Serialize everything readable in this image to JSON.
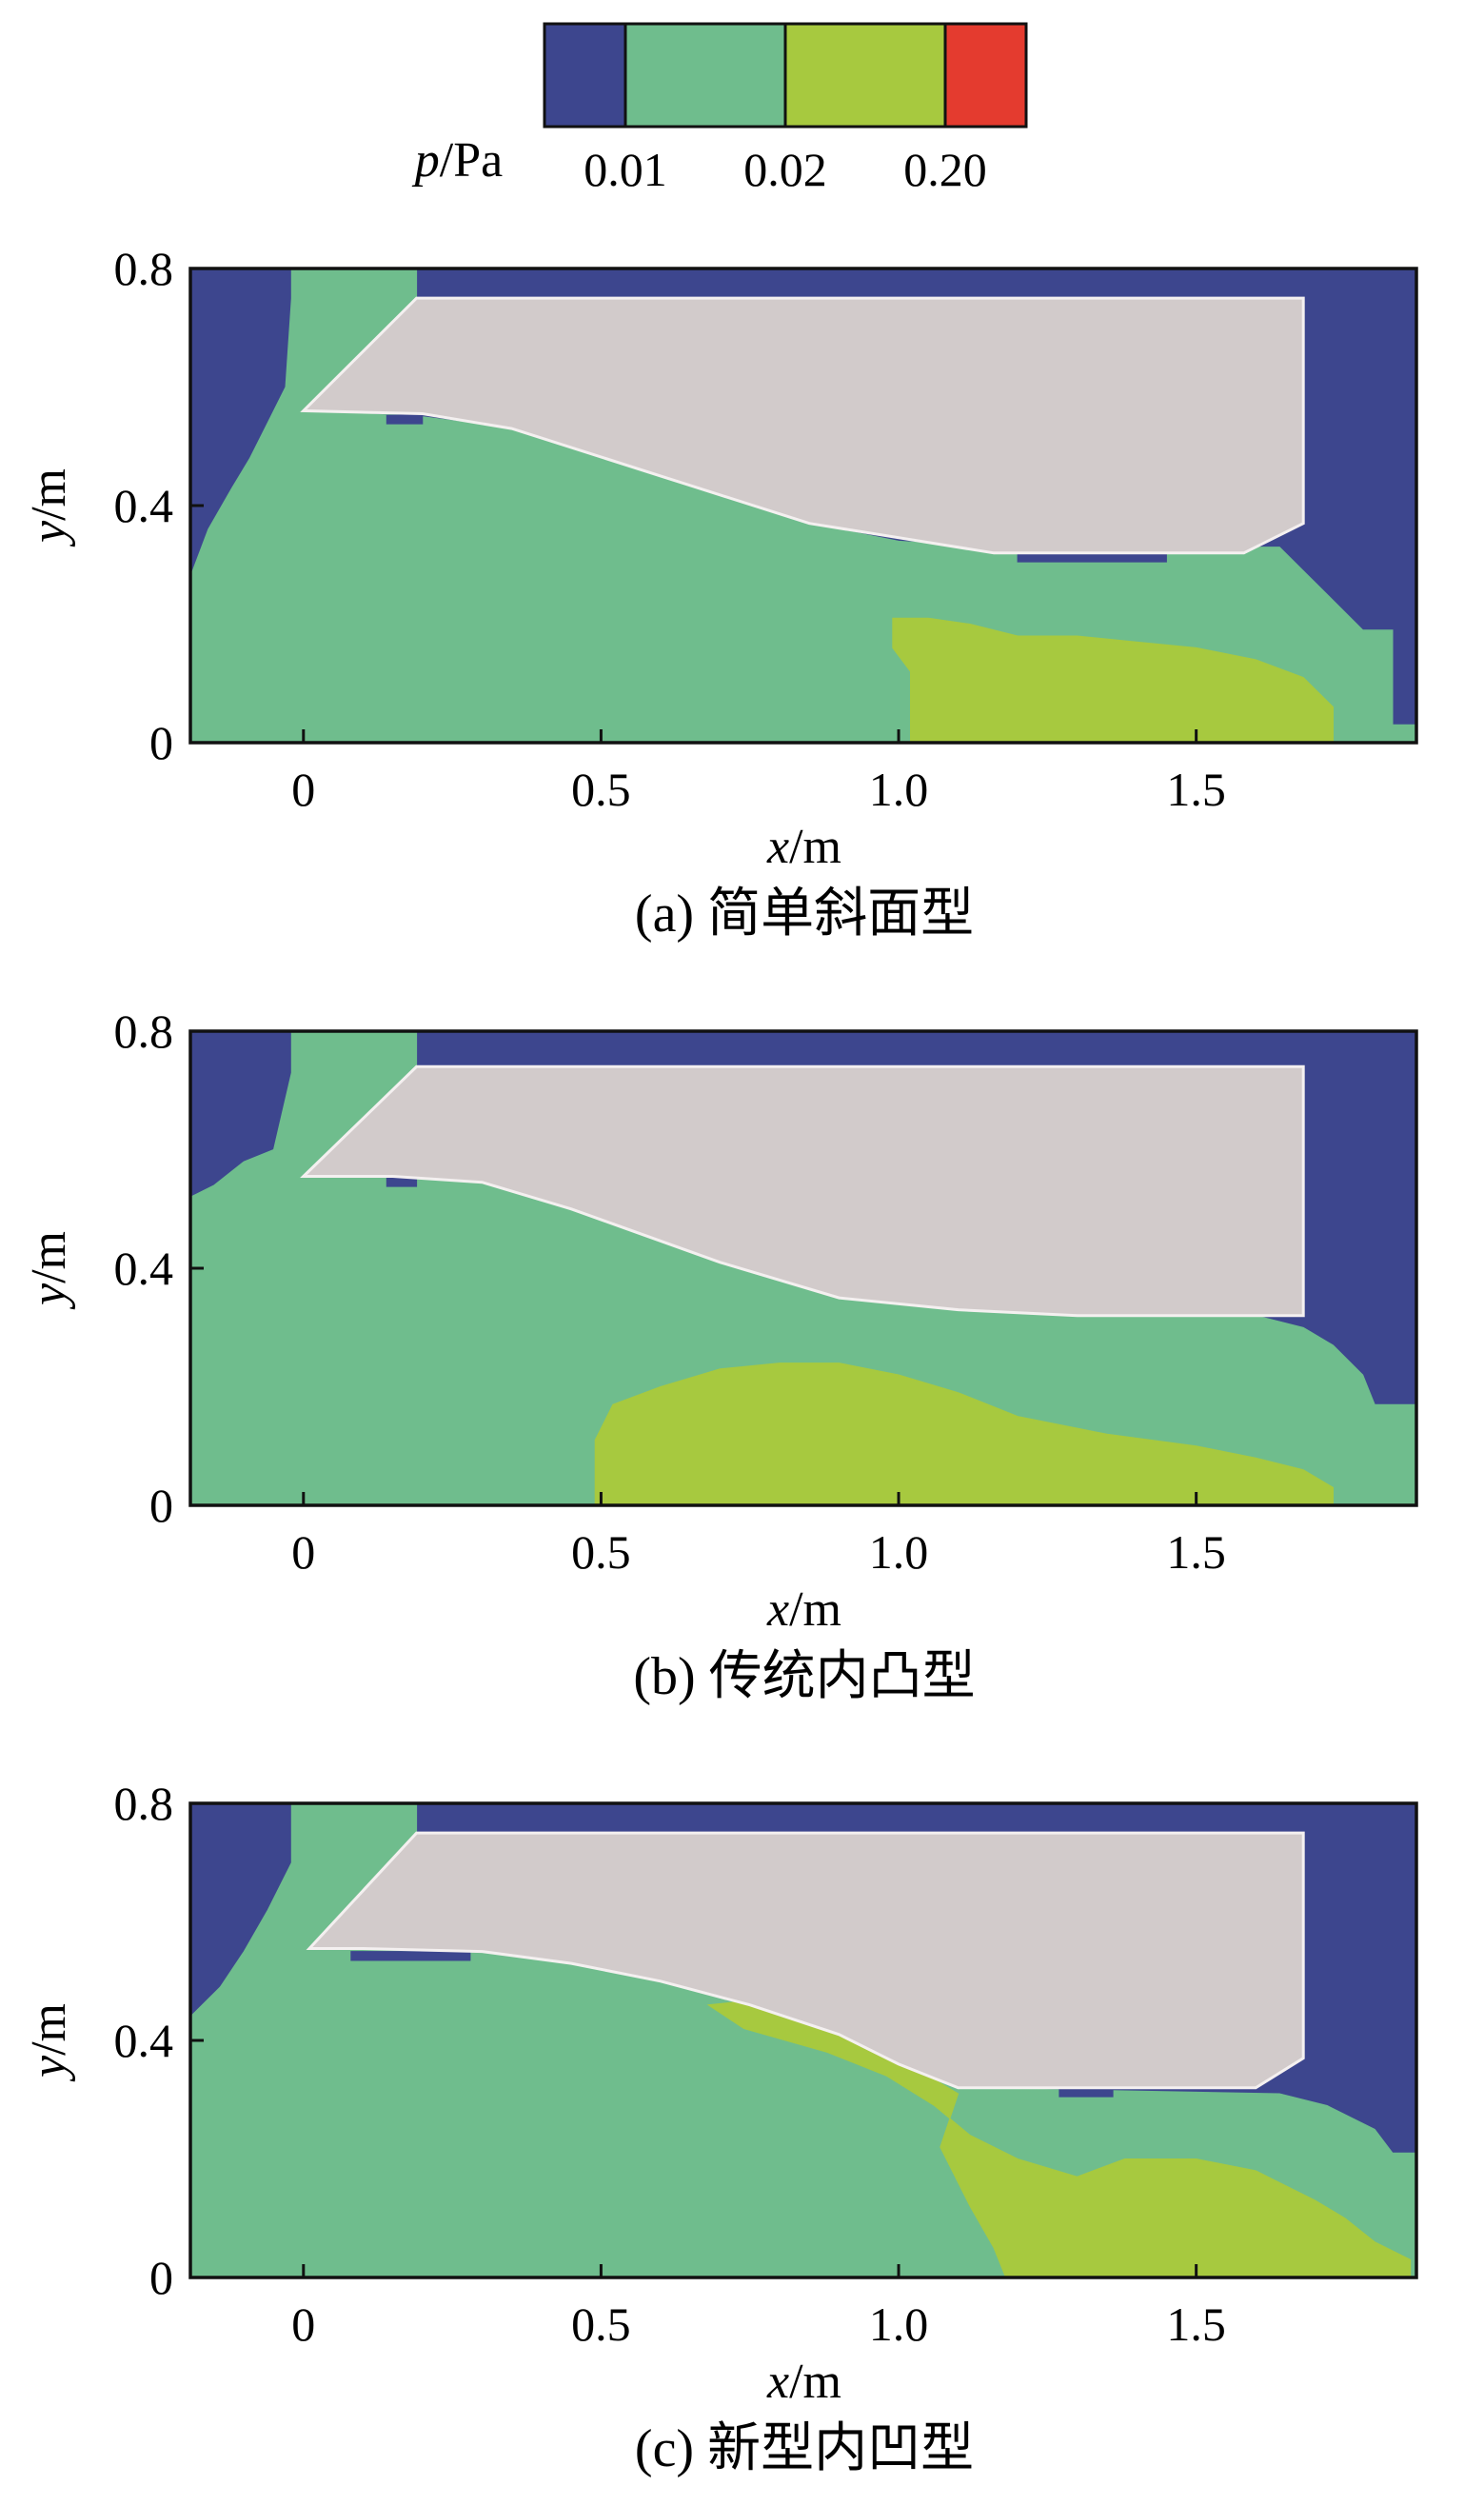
{
  "chart_data": {
    "type": "heatmap",
    "colorbar": {
      "label_var": "p",
      "label_unit": "/Pa",
      "colors": [
        "#3d468e",
        "#6fbd8d",
        "#a7c93f",
        "#e43b2f"
      ],
      "tick_labels": [
        "0.01",
        "0.02",
        "0.20"
      ],
      "levels": [
        0.01,
        0.02,
        0.2
      ]
    },
    "body_color": "#d2cbcb",
    "panels": [
      {
        "caption": "(a) 简单斜面型",
        "xlabel_var": "x",
        "xlabel_unit": "/m",
        "ylabel_var": "y",
        "ylabel_unit": "/m",
        "xlim": [
          -0.19,
          1.87
        ],
        "ylim": [
          0,
          0.8
        ],
        "xticks": [
          {
            "v": 0,
            "label": "0"
          },
          {
            "v": 0.5,
            "label": "0.5"
          },
          {
            "v": 1.0,
            "label": "1.0"
          },
          {
            "v": 1.5,
            "label": "1.5"
          }
        ],
        "yticks": [
          {
            "v": 0,
            "label": "0"
          },
          {
            "v": 0.4,
            "label": "0.4"
          },
          {
            "v": 0.8,
            "label": "0.8"
          }
        ],
        "regions": [
          {
            "level": 1,
            "points": [
              [
                -0.19,
                0
              ],
              [
                1.87,
                0
              ],
              [
                1.87,
                0.03
              ],
              [
                1.83,
                0.03
              ],
              [
                1.83,
                0.19
              ],
              [
                1.78,
                0.19
              ],
              [
                1.73,
                0.24
              ],
              [
                1.68,
                0.29
              ],
              [
                1.64,
                0.33
              ],
              [
                1.58,
                0.33
              ],
              [
                1.16,
                0.33
              ],
              [
                1.0,
                0.34
              ],
              [
                0.85,
                0.37
              ],
              [
                0.6,
                0.45
              ],
              [
                0.35,
                0.53
              ],
              [
                0.2,
                0.55
              ],
              [
                0.0,
                0.56
              ],
              [
                0.19,
                0.75
              ],
              [
                0.19,
                0.8
              ],
              [
                -0.02,
                0.8
              ],
              [
                -0.02,
                0.75
              ],
              [
                -0.03,
                0.6
              ],
              [
                -0.06,
                0.54
              ],
              [
                -0.09,
                0.48
              ],
              [
                -0.12,
                0.43
              ],
              [
                -0.16,
                0.36
              ],
              [
                -0.19,
                0.28
              ]
            ]
          },
          {
            "level": 2,
            "points": [
              [
                1.02,
                0
              ],
              [
                1.73,
                0
              ],
              [
                1.73,
                0.06
              ],
              [
                1.68,
                0.11
              ],
              [
                1.6,
                0.14
              ],
              [
                1.5,
                0.16
              ],
              [
                1.4,
                0.17
              ],
              [
                1.3,
                0.18
              ],
              [
                1.2,
                0.18
              ],
              [
                1.12,
                0.2
              ],
              [
                1.05,
                0.21
              ],
              [
                0.99,
                0.21
              ],
              [
                0.99,
                0.16
              ],
              [
                1.02,
                0.12
              ]
            ]
          },
          {
            "level": 0,
            "points": [
              [
                1.2,
                0.305
              ],
              [
                1.45,
                0.305
              ],
              [
                1.45,
                0.322
              ],
              [
                1.2,
                0.322
              ]
            ]
          },
          {
            "level": 0,
            "points": [
              [
                0.14,
                0.538
              ],
              [
                0.2,
                0.538
              ],
              [
                0.2,
                0.552
              ],
              [
                0.14,
                0.552
              ]
            ]
          }
        ],
        "body": [
          [
            0.0,
            0.56
          ],
          [
            0.19,
            0.75
          ],
          [
            1.68,
            0.75
          ],
          [
            1.68,
            0.37
          ],
          [
            1.58,
            0.32
          ],
          [
            1.16,
            0.32
          ],
          [
            0.85,
            0.37
          ],
          [
            0.6,
            0.45
          ],
          [
            0.35,
            0.53
          ],
          [
            0.2,
            0.555
          ]
        ]
      },
      {
        "caption": "(b) 传统内凸型",
        "xlabel_var": "x",
        "xlabel_unit": "/m",
        "ylabel_var": "y",
        "ylabel_unit": "/m",
        "xlim": [
          -0.19,
          1.87
        ],
        "ylim": [
          0,
          0.8
        ],
        "xticks": [
          {
            "v": 0,
            "label": "0"
          },
          {
            "v": 0.5,
            "label": "0.5"
          },
          {
            "v": 1.0,
            "label": "1.0"
          },
          {
            "v": 1.5,
            "label": "1.5"
          }
        ],
        "yticks": [
          {
            "v": 0,
            "label": "0"
          },
          {
            "v": 0.4,
            "label": "0.4"
          },
          {
            "v": 0.8,
            "label": "0.8"
          }
        ],
        "regions": [
          {
            "level": 1,
            "points": [
              [
                -0.19,
                0
              ],
              [
                1.87,
                0
              ],
              [
                1.87,
                0.17
              ],
              [
                1.8,
                0.17
              ],
              [
                1.78,
                0.22
              ],
              [
                1.73,
                0.27
              ],
              [
                1.68,
                0.3
              ],
              [
                1.6,
                0.32
              ],
              [
                1.3,
                0.32
              ],
              [
                1.1,
                0.33
              ],
              [
                0.9,
                0.35
              ],
              [
                0.7,
                0.41
              ],
              [
                0.45,
                0.5
              ],
              [
                0.3,
                0.545
              ],
              [
                0.15,
                0.555
              ],
              [
                0.0,
                0.555
              ],
              [
                0.19,
                0.74
              ],
              [
                0.19,
                0.8
              ],
              [
                -0.02,
                0.8
              ],
              [
                -0.02,
                0.73
              ],
              [
                -0.05,
                0.6
              ],
              [
                -0.1,
                0.58
              ],
              [
                -0.15,
                0.54
              ],
              [
                -0.19,
                0.52
              ]
            ]
          },
          {
            "level": 2,
            "points": [
              [
                0.49,
                0
              ],
              [
                1.73,
                0
              ],
              [
                1.73,
                0.03
              ],
              [
                1.68,
                0.06
              ],
              [
                1.6,
                0.08
              ],
              [
                1.5,
                0.1
              ],
              [
                1.35,
                0.12
              ],
              [
                1.2,
                0.15
              ],
              [
                1.1,
                0.19
              ],
              [
                1.0,
                0.22
              ],
              [
                0.9,
                0.24
              ],
              [
                0.8,
                0.24
              ],
              [
                0.7,
                0.23
              ],
              [
                0.6,
                0.2
              ],
              [
                0.52,
                0.17
              ],
              [
                0.49,
                0.11
              ]
            ]
          },
          {
            "level": 0,
            "points": [
              [
                0.14,
                0.538
              ],
              [
                0.19,
                0.538
              ],
              [
                0.19,
                0.552
              ],
              [
                0.14,
                0.552
              ]
            ]
          }
        ],
        "body": [
          [
            0.0,
            0.555
          ],
          [
            0.19,
            0.74
          ],
          [
            1.68,
            0.74
          ],
          [
            1.68,
            0.32
          ],
          [
            1.3,
            0.32
          ],
          [
            1.1,
            0.33
          ],
          [
            0.9,
            0.35
          ],
          [
            0.7,
            0.41
          ],
          [
            0.45,
            0.5
          ],
          [
            0.3,
            0.545
          ],
          [
            0.15,
            0.555
          ]
        ]
      },
      {
        "caption": "(c) 新型内凹型",
        "xlabel_var": "x",
        "xlabel_unit": "/m",
        "ylabel_var": "y",
        "ylabel_unit": "/m",
        "xlim": [
          -0.19,
          1.87
        ],
        "ylim": [
          0,
          0.8
        ],
        "xticks": [
          {
            "v": 0,
            "label": "0"
          },
          {
            "v": 0.5,
            "label": "0.5"
          },
          {
            "v": 1.0,
            "label": "1.0"
          },
          {
            "v": 1.5,
            "label": "1.5"
          }
        ],
        "yticks": [
          {
            "v": 0,
            "label": "0"
          },
          {
            "v": 0.4,
            "label": "0.4"
          },
          {
            "v": 0.8,
            "label": "0.8"
          }
        ],
        "regions": [
          {
            "level": 1,
            "points": [
              [
                -0.19,
                0
              ],
              [
                1.87,
                0
              ],
              [
                1.87,
                0.21
              ],
              [
                1.83,
                0.21
              ],
              [
                1.8,
                0.25
              ],
              [
                1.72,
                0.29
              ],
              [
                1.64,
                0.31
              ],
              [
                1.1,
                0.32
              ],
              [
                1.0,
                0.36
              ],
              [
                0.9,
                0.41
              ],
              [
                0.75,
                0.46
              ],
              [
                0.6,
                0.5
              ],
              [
                0.45,
                0.53
              ],
              [
                0.3,
                0.55
              ],
              [
                0.1,
                0.555
              ],
              [
                0.01,
                0.555
              ],
              [
                0.19,
                0.75
              ],
              [
                0.19,
                0.8
              ],
              [
                -0.02,
                0.8
              ],
              [
                -0.02,
                0.7
              ],
              [
                -0.06,
                0.62
              ],
              [
                -0.1,
                0.55
              ],
              [
                -0.14,
                0.49
              ],
              [
                -0.19,
                0.44
              ]
            ]
          },
          {
            "level": 2,
            "points": [
              [
                1.18,
                0
              ],
              [
                1.86,
                0
              ],
              [
                1.86,
                0.03
              ],
              [
                1.8,
                0.06
              ],
              [
                1.75,
                0.1
              ],
              [
                1.7,
                0.13
              ],
              [
                1.6,
                0.18
              ],
              [
                1.5,
                0.2
              ],
              [
                1.38,
                0.2
              ],
              [
                1.3,
                0.17
              ],
              [
                1.2,
                0.2
              ],
              [
                1.12,
                0.24
              ],
              [
                1.06,
                0.29
              ],
              [
                0.98,
                0.34
              ],
              [
                0.88,
                0.38
              ],
              [
                0.74,
                0.42
              ],
              [
                0.68,
                0.46
              ],
              [
                0.78,
                0.47
              ],
              [
                0.9,
                0.43
              ],
              [
                1.0,
                0.37
              ],
              [
                1.1,
                0.31
              ],
              [
                1.07,
                0.22
              ],
              [
                1.12,
                0.12
              ],
              [
                1.16,
                0.05
              ]
            ]
          },
          {
            "level": 0,
            "points": [
              [
                1.27,
                0.305
              ],
              [
                1.36,
                0.305
              ],
              [
                1.36,
                0.322
              ],
              [
                1.27,
                0.322
              ]
            ]
          },
          {
            "level": 0,
            "points": [
              [
                0.08,
                0.535
              ],
              [
                0.28,
                0.535
              ],
              [
                0.28,
                0.55
              ],
              [
                0.08,
                0.55
              ]
            ]
          }
        ],
        "body": [
          [
            0.01,
            0.555
          ],
          [
            0.19,
            0.75
          ],
          [
            1.68,
            0.75
          ],
          [
            1.68,
            0.37
          ],
          [
            1.6,
            0.32
          ],
          [
            1.1,
            0.32
          ],
          [
            1.0,
            0.36
          ],
          [
            0.9,
            0.41
          ],
          [
            0.75,
            0.46
          ],
          [
            0.6,
            0.5
          ],
          [
            0.45,
            0.53
          ],
          [
            0.3,
            0.55
          ],
          [
            0.1,
            0.555
          ]
        ]
      }
    ]
  }
}
